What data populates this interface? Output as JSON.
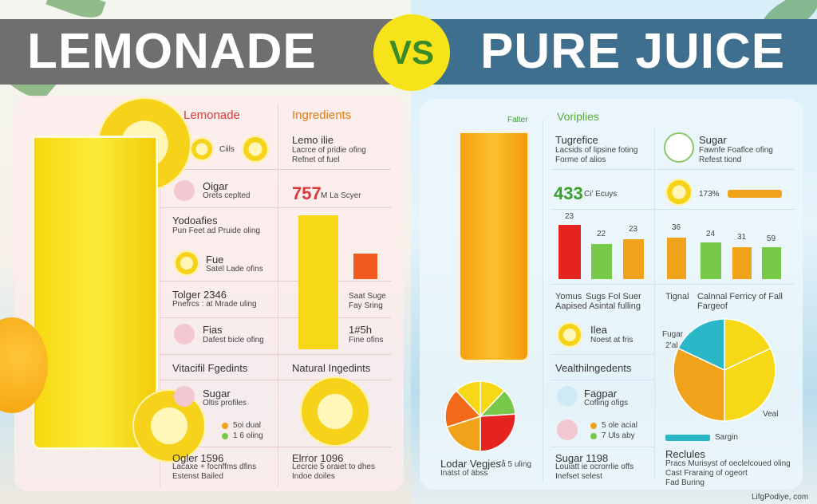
{
  "title": {
    "left": "LEMONADE",
    "vs": "VS",
    "right": "PURE JUICE"
  },
  "left_panel": {
    "header_a": "Lemonade",
    "header_b": "Ingredients",
    "r1_l": "Ciils",
    "r1_r_title": "Lemo ilie",
    "r1_r_sub1": "Lacrce of pridie ofing",
    "r1_r_sub2": "Refnet of fuel",
    "r2_l_title": "Oigar",
    "r2_l_sub": "Orets ceplted",
    "r2_r_big": "757",
    "r2_r_small": "M La Scyer",
    "r3_l_title": "Yodoafies",
    "r3_l_sub": "Pun Feet ad Pruide oling",
    "r4_l_title": "Fue",
    "r4_l_sub": "Satel Lade ofins",
    "r5_l_title": "Tolger 2346",
    "r5_l_sub": "Pnefrcs : at Mrade uling",
    "r5_r_title": "Saat Suge",
    "r5_r_sub": "Fay Sring",
    "r6_l_title": "Fias",
    "r6_l_sub": "Dafest bicle ofing",
    "r6_r_title": "1#5h",
    "r6_r_sub": "Fine ofins",
    "r7_l": "Vitacifil Fgedints",
    "r7_r": "Natural Ingedints",
    "r8_l_title": "Sugar",
    "r8_l_sub": "Oltis profiles",
    "r8_l_dot1": "5oi dual",
    "r8_l_dot2": "1 6 oling",
    "r9_l_title": "Ogler 1596",
    "r9_l_sub1": "Lacaxe + focnffms dfins",
    "r9_l_sub2": "Estenst Bailed",
    "r9_r_title": "Elrror 1096",
    "r9_r_sub1": "Lecrcie 5 oraiet to dhes",
    "r9_r_sub2": "Indoe doiles"
  },
  "right_panel": {
    "glass_label": "Falter",
    "header_a": "Voriplies",
    "r1_title": "Tugrefice",
    "r1_sub1": "Lacsids of lipsine foting",
    "r1_sub2": "Forme of alios",
    "r1_b_title": "Sugar",
    "r1_b_sub1": "Fawnfe Foaflce ofing",
    "r1_b_sub2": "Refest  tiond",
    "r2_big": "433",
    "r2_small": "Ci’ Ecuys",
    "r2_b_val": "173%",
    "bar_labels_a": [
      "23",
      "22",
      "23"
    ],
    "bar_labels_b": [
      "36",
      "24",
      "31",
      "59"
    ],
    "r3_l_title": "Yomus",
    "r3_l_sub": "Sugs Fol Suer",
    "r3_l_sub2": "Aapised Asintal fulling",
    "r3_r_title": "Tignal",
    "r3_r_sub": "Calnnal Ferricy of Fall",
    "r3_r_sub2": "Fargeof",
    "r4_title": "Ilea",
    "r4_sub": "Noest at fris",
    "r5_l": "Vealthilngedents",
    "pie_label_a": "Fugar",
    "pie_label_b": "2’al",
    "pie_label_c": "Veal",
    "r6_title": "Fagpar",
    "r6_sub": "Cofling ofigs",
    "r6_dot1": "5 ole acial",
    "r6_dot2": "7 Uls aby",
    "r7_l_title": "Lodar Vegjes",
    "r7_l_num": "’å 5 uling",
    "r7_l_sub": "Inatst of äbss",
    "r7_m_title": "Sugar 1198",
    "r7_m_sub1": "Louiatt ie ocrorrlie offs",
    "r7_m_sub2": "Inefset selest",
    "legend_label": "Sargin",
    "r8_title": "Reclules",
    "r8_sub1": "Pracs Murisyst of oeclelcoued oling",
    "r8_sub2": "Cast Fraraing of ogeort",
    "r8_sub3": "Fad Buring",
    "watermark": "LifgPodiye, com"
  },
  "colors": {
    "banner_left": "#6f6f6f",
    "banner_right": "#3f6f8f",
    "vs_circle": "#f6e31a",
    "red": "#e52420",
    "orange": "#f0a21a",
    "green": "#78c84a",
    "yellow": "#f6d816",
    "teal": "#2ab8c8"
  }
}
